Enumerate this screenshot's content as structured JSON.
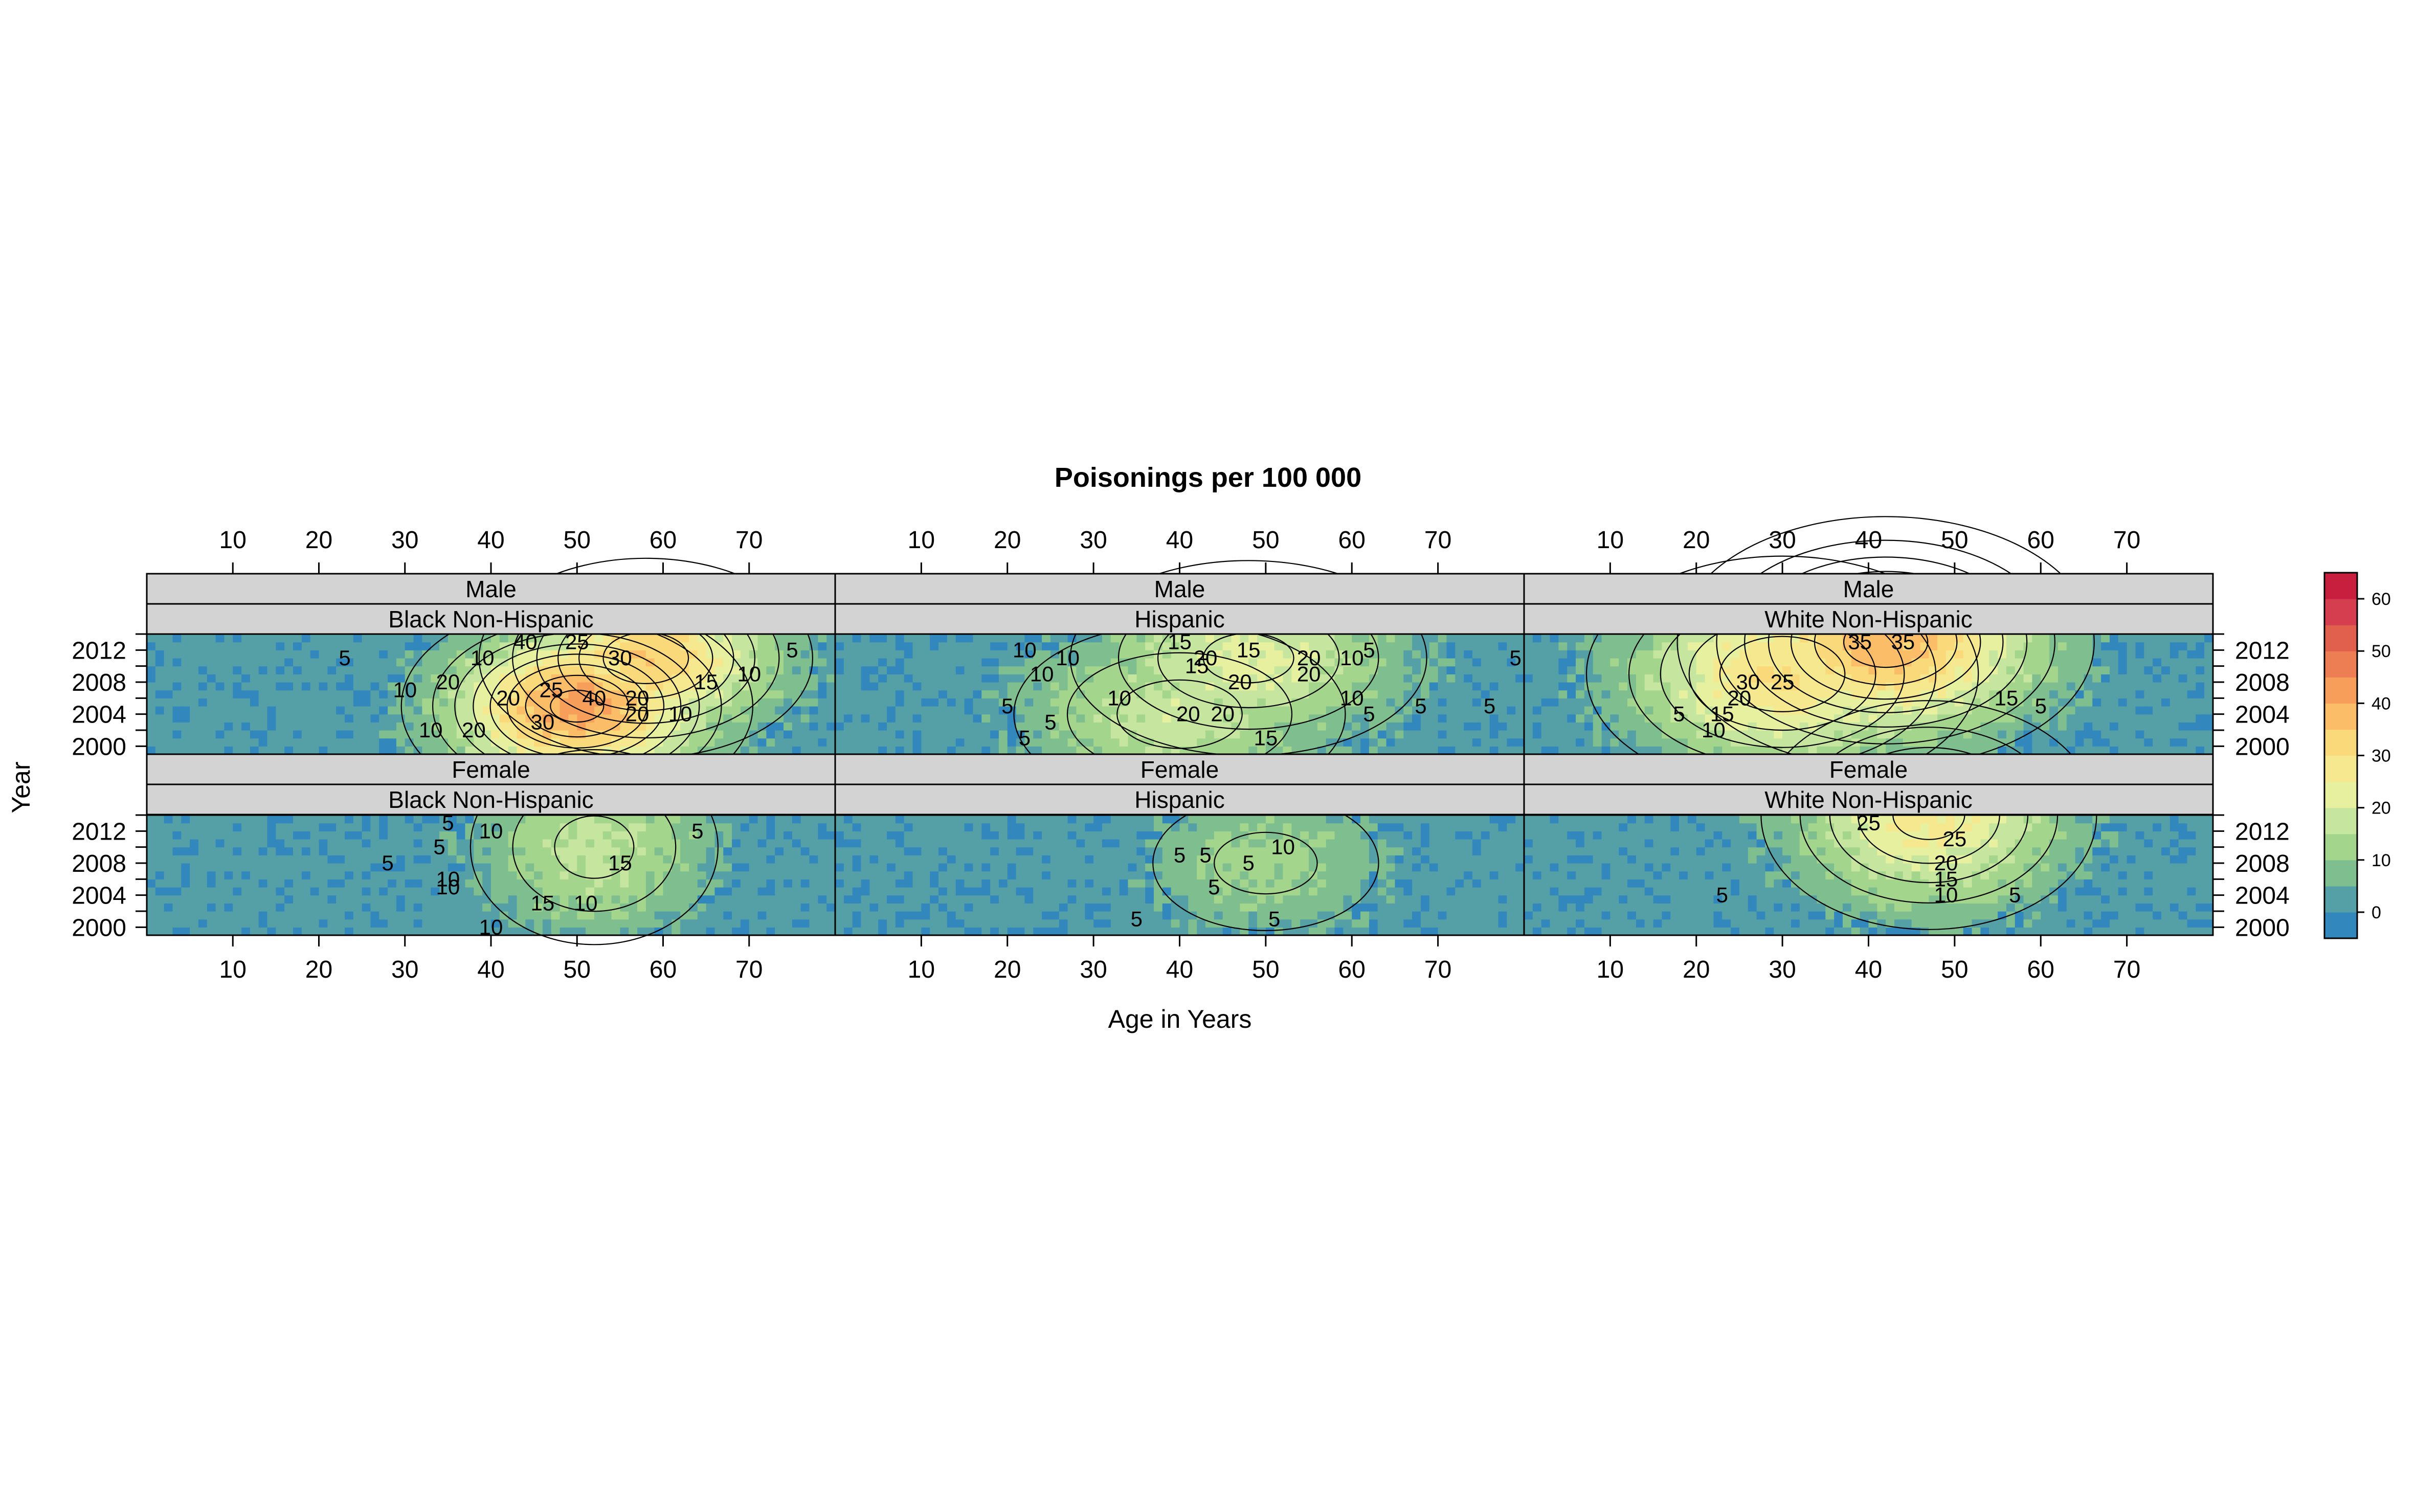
{
  "chart_data": {
    "type": "heatmap",
    "title": "Poisonings per 100 000",
    "xlabel": "Age in Years",
    "ylabel": "Year",
    "xlim": [
      0,
      80
    ],
    "ylim": [
      1999,
      2014
    ],
    "x_ticks": [
      10,
      20,
      30,
      40,
      50,
      60,
      70
    ],
    "y_ticks": [
      2000,
      2004,
      2008,
      2012
    ],
    "grid": false,
    "legend": {
      "placement": "right",
      "ticks": [
        0,
        10,
        20,
        30,
        40,
        50,
        60
      ],
      "levels": [
        -5,
        0,
        5,
        10,
        15,
        20,
        25,
        30,
        35,
        40,
        45,
        50,
        55,
        60,
        65
      ],
      "colors": [
        "#3288bd",
        "#55a0a6",
        "#7fbf8f",
        "#a4d58c",
        "#c6e59e",
        "#e6f09f",
        "#f6e88e",
        "#fad97a",
        "#fbbd68",
        "#f79f5a",
        "#ed7d52",
        "#e0604d",
        "#d53e4f",
        "#c81f3f"
      ]
    },
    "panels": [
      {
        "sex": "Male",
        "group": "Black Non-Hispanic",
        "peaks": [
          {
            "age": 50,
            "year": 2005,
            "value": 42
          },
          {
            "age": 58,
            "year": 2011,
            "value": 34
          }
        ],
        "spread_age": 14,
        "spread_year": 9,
        "contour_labels": [
          {
            "age": 39,
            "year": 2011,
            "value": 10
          },
          {
            "age": 44,
            "year": 2013,
            "value": 40
          },
          {
            "age": 50,
            "year": 2013,
            "value": 25
          },
          {
            "age": 55,
            "year": 2011,
            "value": 30
          },
          {
            "age": 47,
            "year": 2007,
            "value": 25
          },
          {
            "age": 35,
            "year": 2008,
            "value": 20
          },
          {
            "age": 30,
            "year": 2007,
            "value": 10
          },
          {
            "age": 42,
            "year": 2006,
            "value": 20
          },
          {
            "age": 52,
            "year": 2006,
            "value": 40
          },
          {
            "age": 57,
            "year": 2006,
            "value": 20
          },
          {
            "age": 62,
            "year": 2004,
            "value": 10
          },
          {
            "age": 65,
            "year": 2008,
            "value": 15
          },
          {
            "age": 70,
            "year": 2009,
            "value": 10
          },
          {
            "age": 75,
            "year": 2012,
            "value": 5
          },
          {
            "age": 33,
            "year": 2002,
            "value": 10
          },
          {
            "age": 38,
            "year": 2002,
            "value": 20
          },
          {
            "age": 46,
            "year": 2003,
            "value": 30
          },
          {
            "age": 57,
            "year": 2004,
            "value": 20
          },
          {
            "age": 23,
            "year": 2011,
            "value": 5
          }
        ]
      },
      {
        "sex": "Male",
        "group": "Hispanic",
        "peaks": [
          {
            "age": 48,
            "year": 2011,
            "value": 22
          },
          {
            "age": 40,
            "year": 2004,
            "value": 18
          }
        ],
        "spread_age": 17,
        "spread_year": 10,
        "contour_labels": [
          {
            "age": 22,
            "year": 2012,
            "value": 10
          },
          {
            "age": 27,
            "year": 2011,
            "value": 10
          },
          {
            "age": 40,
            "year": 2013,
            "value": 15
          },
          {
            "age": 43,
            "year": 2011,
            "value": 20
          },
          {
            "age": 48,
            "year": 2012,
            "value": 15
          },
          {
            "age": 55,
            "year": 2011,
            "value": 20
          },
          {
            "age": 60,
            "year": 2011,
            "value": 10
          },
          {
            "age": 42,
            "year": 2010,
            "value": 15
          },
          {
            "age": 24,
            "year": 2009,
            "value": 10
          },
          {
            "age": 33,
            "year": 2006,
            "value": 10
          },
          {
            "age": 47,
            "year": 2008,
            "value": 20
          },
          {
            "age": 55,
            "year": 2009,
            "value": 20
          },
          {
            "age": 60,
            "year": 2006,
            "value": 10
          },
          {
            "age": 62,
            "year": 2004,
            "value": 5
          },
          {
            "age": 68,
            "year": 2005,
            "value": 5
          },
          {
            "age": 76,
            "year": 2005,
            "value": 5
          },
          {
            "age": 41,
            "year": 2004,
            "value": 20
          },
          {
            "age": 45,
            "year": 2004,
            "value": 20
          },
          {
            "age": 20,
            "year": 2005,
            "value": 5
          },
          {
            "age": 22,
            "year": 2001,
            "value": 5
          },
          {
            "age": 25,
            "year": 2003,
            "value": 5
          },
          {
            "age": 50,
            "year": 2001,
            "value": 15
          },
          {
            "age": 62,
            "year": 2012,
            "value": 5
          },
          {
            "age": 79,
            "year": 2011,
            "value": 5
          }
        ]
      },
      {
        "sex": "Male",
        "group": "White Non-Hispanic",
        "peaks": [
          {
            "age": 42,
            "year": 2013,
            "value": 38
          },
          {
            "age": 30,
            "year": 2009,
            "value": 30
          }
        ],
        "spread_age": 17,
        "spread_year": 11,
        "contour_labels": [
          {
            "age": 39,
            "year": 2013,
            "value": 35
          },
          {
            "age": 44,
            "year": 2013,
            "value": 35
          },
          {
            "age": 26,
            "year": 2008,
            "value": 30
          },
          {
            "age": 30,
            "year": 2008,
            "value": 25
          },
          {
            "age": 25,
            "year": 2006,
            "value": 20
          },
          {
            "age": 23,
            "year": 2004,
            "value": 15
          },
          {
            "age": 22,
            "year": 2002,
            "value": 10
          },
          {
            "age": 56,
            "year": 2006,
            "value": 15
          },
          {
            "age": 60,
            "year": 2005,
            "value": 5
          },
          {
            "age": 18,
            "year": 2004,
            "value": 5
          }
        ]
      },
      {
        "sex": "Female",
        "group": "Black Non-Hispanic",
        "peaks": [
          {
            "age": 52,
            "year": 2010,
            "value": 17
          }
        ],
        "spread_age": 13,
        "spread_year": 11,
        "contour_labels": [
          {
            "age": 35,
            "year": 2013,
            "value": 5
          },
          {
            "age": 40,
            "year": 2012,
            "value": 10
          },
          {
            "age": 34,
            "year": 2010,
            "value": 5
          },
          {
            "age": 28,
            "year": 2008,
            "value": 5
          },
          {
            "age": 35,
            "year": 2006,
            "value": 10
          },
          {
            "age": 35,
            "year": 2005,
            "value": 10
          },
          {
            "age": 55,
            "year": 2008,
            "value": 15
          },
          {
            "age": 64,
            "year": 2012,
            "value": 5
          },
          {
            "age": 40,
            "year": 2000,
            "value": 10
          },
          {
            "age": 46,
            "year": 2003,
            "value": 15
          },
          {
            "age": 51,
            "year": 2003,
            "value": 10
          }
        ]
      },
      {
        "sex": "Female",
        "group": "Hispanic",
        "peaks": [
          {
            "age": 50,
            "year": 2008,
            "value": 12
          }
        ],
        "spread_age": 14,
        "spread_year": 9,
        "contour_labels": [
          {
            "age": 40,
            "year": 2009,
            "value": 5
          },
          {
            "age": 43,
            "year": 2009,
            "value": 5
          },
          {
            "age": 48,
            "year": 2008,
            "value": 5
          },
          {
            "age": 52,
            "year": 2010,
            "value": 10
          },
          {
            "age": 44,
            "year": 2005,
            "value": 5
          },
          {
            "age": 35,
            "year": 2001,
            "value": 5
          },
          {
            "age": 51,
            "year": 2001,
            "value": 5
          }
        ]
      },
      {
        "sex": "Female",
        "group": "White Non-Hispanic",
        "peaks": [
          {
            "age": 47,
            "year": 2014,
            "value": 27
          }
        ],
        "spread_age": 15,
        "spread_year": 11,
        "contour_labels": [
          {
            "age": 40,
            "year": 2013,
            "value": 25
          },
          {
            "age": 50,
            "year": 2011,
            "value": 25
          },
          {
            "age": 49,
            "year": 2008,
            "value": 20
          },
          {
            "age": 49,
            "year": 2006,
            "value": 15
          },
          {
            "age": 49,
            "year": 2004,
            "value": 10
          },
          {
            "age": 57,
            "year": 2004,
            "value": 5
          },
          {
            "age": 23,
            "year": 2004,
            "value": 5
          }
        ]
      }
    ]
  }
}
